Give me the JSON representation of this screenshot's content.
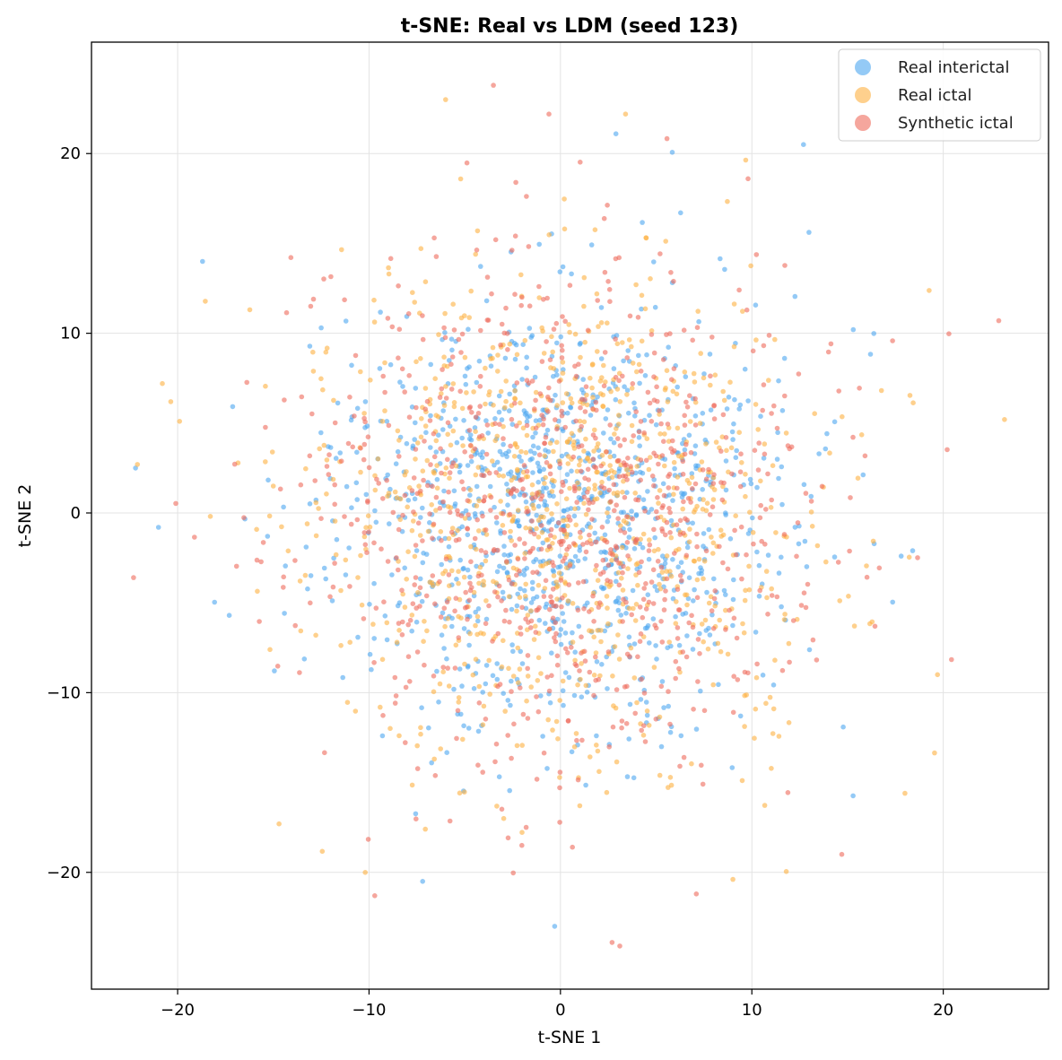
{
  "chart_data": {
    "type": "scatter",
    "title": "t-SNE: Real vs LDM (seed 123)",
    "xlabel": "t-SNE 1",
    "ylabel": "t-SNE 2",
    "xlim": [
      -24.5,
      25.5
    ],
    "ylim": [
      -26.5,
      26.2
    ],
    "xticks": [
      -20,
      -10,
      0,
      10,
      20
    ],
    "yticks": [
      -20,
      -10,
      0,
      10,
      20
    ],
    "grid": true,
    "legend_position": "top-right",
    "series": [
      {
        "name": "Real interictal",
        "color": "#4da6f0",
        "count": 1000,
        "spread": 9.5,
        "points": [
          [
            -22.2,
            2.5
          ],
          [
            -21.0,
            -0.8
          ],
          [
            -18.7,
            14.0
          ],
          [
            -17.3,
            -5.7
          ],
          [
            -15.3,
            -1.3
          ],
          [
            -12.5,
            10.3
          ],
          [
            -9.3,
            -12.4
          ],
          [
            -7.2,
            -20.5
          ],
          [
            -0.3,
            -23.0
          ],
          [
            2.9,
            21.1
          ],
          [
            12.7,
            20.5
          ],
          [
            17.8,
            -2.4
          ],
          [
            18.4,
            -2.1
          ],
          [
            15.3,
            10.2
          ]
        ]
      },
      {
        "name": "Real ictal",
        "color": "#fdb041",
        "count": 900,
        "spread": 11.0,
        "points": [
          [
            -22.1,
            2.7
          ],
          [
            -20.8,
            7.2
          ],
          [
            -19.9,
            5.1
          ],
          [
            -14.7,
            -17.3
          ],
          [
            -6.0,
            23.0
          ],
          [
            3.4,
            22.2
          ],
          [
            23.2,
            5.2
          ],
          [
            19.7,
            -9.0
          ],
          [
            18.0,
            -15.6
          ],
          [
            -10.2,
            -20.0
          ]
        ]
      },
      {
        "name": "Synthetic ictal",
        "color": "#ee6a5c",
        "count": 900,
        "spread": 11.0,
        "points": [
          [
            -3.5,
            23.8
          ],
          [
            -0.6,
            22.2
          ],
          [
            22.9,
            10.7
          ],
          [
            2.7,
            -23.9
          ],
          [
            3.1,
            -24.1
          ],
          [
            -22.3,
            -3.6
          ],
          [
            9.8,
            18.6
          ],
          [
            -9.7,
            -21.3
          ],
          [
            7.1,
            -21.2
          ],
          [
            14.7,
            -19.0
          ]
        ]
      }
    ]
  }
}
